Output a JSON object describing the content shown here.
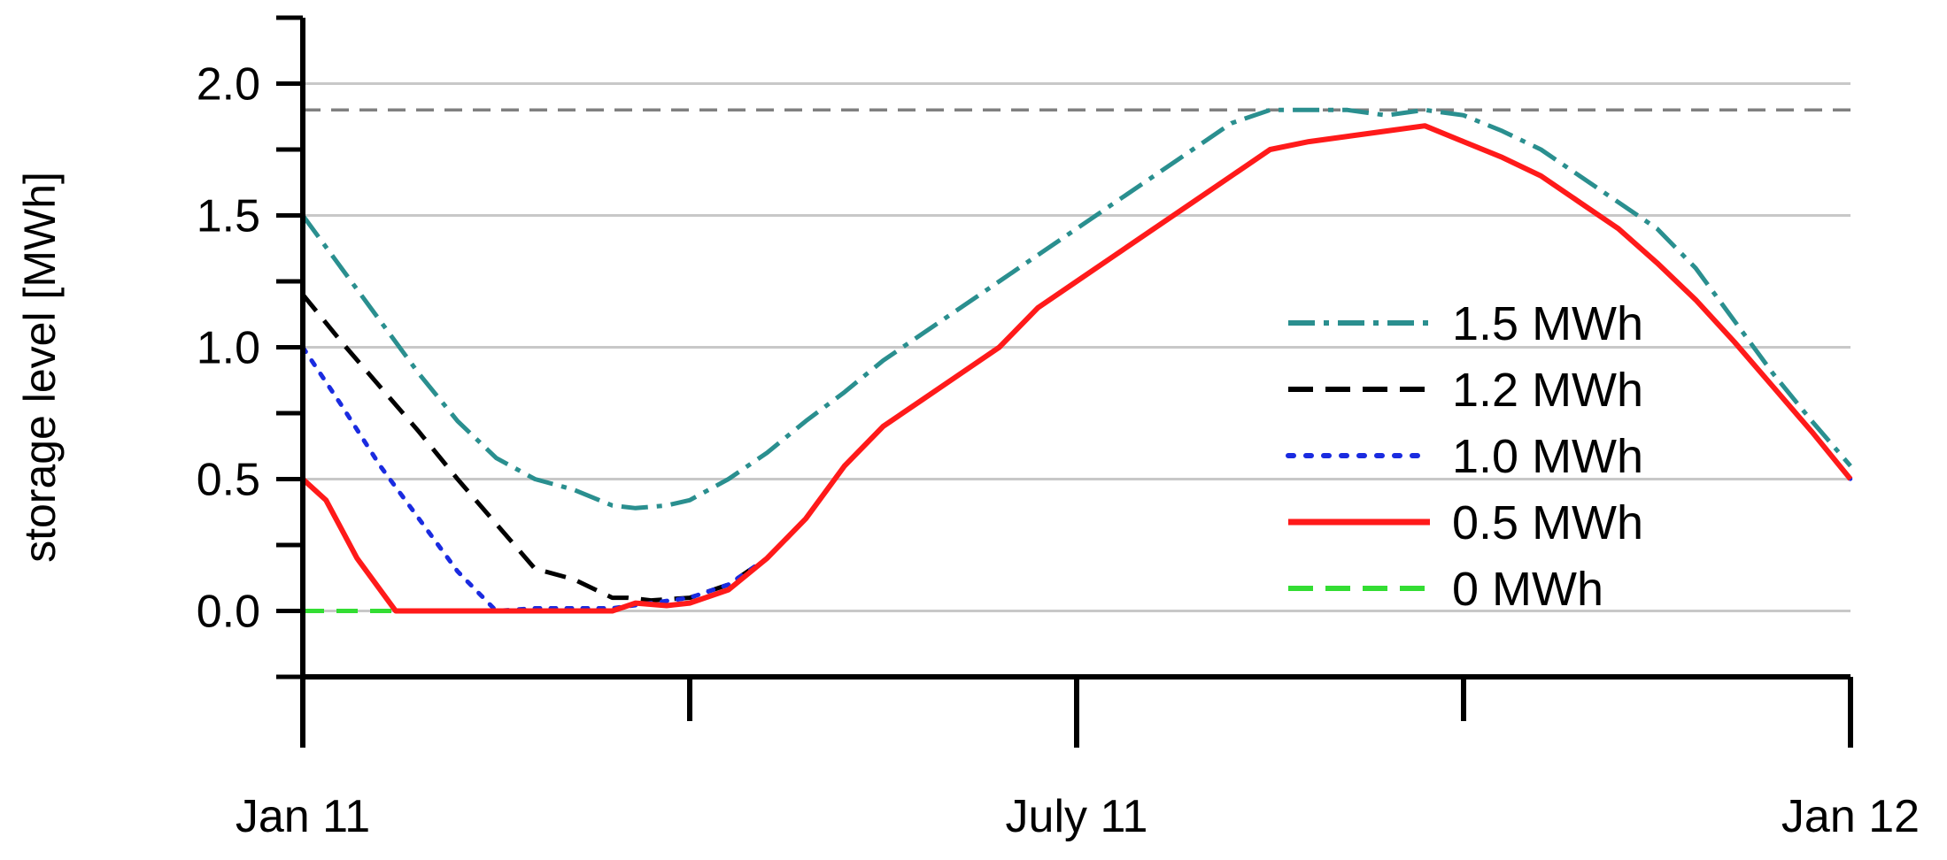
{
  "chart_data": {
    "type": "line",
    "title": "",
    "xlabel": "",
    "ylabel": "storage level [MWh]",
    "xlim": [
      "Jan 11",
      "Jan 12"
    ],
    "ylim": [
      -0.25,
      2.25
    ],
    "x_ticks": [
      {
        "label": "Jan 11"
      },
      {
        "label": ""
      },
      {
        "label": "July 11"
      },
      {
        "label": ""
      },
      {
        "label": "Jan 12"
      }
    ],
    "y_ticks": [
      "0.0",
      "0.5",
      "1.0",
      "1.5",
      "2.0"
    ],
    "grid": "horizontal",
    "capacity_line": 1.9,
    "legend_position": "right",
    "x_unit": "month (Jan 11 - Jan 12)",
    "series": [
      {
        "name": "1.5 MWh",
        "color": "#2a8f8f",
        "style": "dash-dot",
        "points": [
          [
            0,
            1.5
          ],
          [
            0.5,
            1.3
          ],
          [
            1,
            1.1
          ],
          [
            1.5,
            0.9
          ],
          [
            2,
            0.72
          ],
          [
            2.5,
            0.58
          ],
          [
            3,
            0.5
          ],
          [
            3.5,
            0.46
          ],
          [
            4,
            0.4
          ],
          [
            4.3,
            0.39
          ],
          [
            4.7,
            0.4
          ],
          [
            5,
            0.42
          ],
          [
            5.5,
            0.5
          ],
          [
            6,
            0.6
          ],
          [
            6.5,
            0.72
          ],
          [
            7,
            0.83
          ],
          [
            7.5,
            0.95
          ],
          [
            8,
            1.05
          ],
          [
            8.5,
            1.15
          ],
          [
            9,
            1.25
          ],
          [
            9.5,
            1.35
          ],
          [
            10,
            1.45
          ],
          [
            10.5,
            1.55
          ],
          [
            11,
            1.65
          ],
          [
            11.5,
            1.75
          ],
          [
            12,
            1.85
          ],
          [
            12.5,
            1.9
          ],
          [
            13,
            1.9
          ],
          [
            13.5,
            1.9
          ],
          [
            14,
            1.88
          ],
          [
            14.5,
            1.9
          ],
          [
            15,
            1.88
          ],
          [
            15.5,
            1.82
          ],
          [
            16,
            1.75
          ],
          [
            16.5,
            1.65
          ],
          [
            17,
            1.55
          ],
          [
            17.5,
            1.45
          ],
          [
            18,
            1.3
          ],
          [
            18.5,
            1.1
          ],
          [
            19,
            0.9
          ],
          [
            19.5,
            0.72
          ],
          [
            20,
            0.55
          ]
        ]
      },
      {
        "name": "1.2 MWh",
        "color": "#000000",
        "style": "dashed",
        "points": [
          [
            0,
            1.2
          ],
          [
            0.5,
            1.02
          ],
          [
            1,
            0.85
          ],
          [
            1.5,
            0.68
          ],
          [
            2,
            0.5
          ],
          [
            2.5,
            0.33
          ],
          [
            3,
            0.16
          ],
          [
            3.5,
            0.12
          ],
          [
            4,
            0.05
          ],
          [
            4.2,
            0.05
          ],
          [
            4.5,
            0.04
          ],
          [
            5,
            0.05
          ],
          [
            5.5,
            0.1
          ],
          [
            6,
            0.2
          ],
          [
            6.5,
            0.35
          ],
          [
            7,
            0.55
          ],
          [
            7.5,
            0.7
          ],
          [
            8,
            0.8
          ],
          [
            8.5,
            0.9
          ],
          [
            9,
            1.0
          ],
          [
            9.5,
            1.15
          ],
          [
            10,
            1.25
          ],
          [
            10.5,
            1.35
          ],
          [
            11,
            1.45
          ],
          [
            11.5,
            1.55
          ],
          [
            12,
            1.65
          ],
          [
            12.5,
            1.75
          ],
          [
            13,
            1.78
          ],
          [
            13.5,
            1.8
          ],
          [
            14,
            1.82
          ],
          [
            14.5,
            1.84
          ],
          [
            15,
            1.78
          ],
          [
            15.5,
            1.72
          ],
          [
            16,
            1.65
          ],
          [
            16.5,
            1.55
          ],
          [
            17,
            1.45
          ],
          [
            17.5,
            1.32
          ],
          [
            18,
            1.18
          ],
          [
            18.5,
            1.02
          ],
          [
            19,
            0.85
          ],
          [
            19.5,
            0.68
          ],
          [
            20,
            0.5
          ]
        ]
      },
      {
        "name": "1.0 MWh",
        "color": "#1a2be0",
        "style": "dotted",
        "points": [
          [
            0,
            1.0
          ],
          [
            0.5,
            0.78
          ],
          [
            1,
            0.55
          ],
          [
            1.5,
            0.35
          ],
          [
            2,
            0.15
          ],
          [
            2.5,
            0.0
          ],
          [
            3,
            0.01
          ],
          [
            3.5,
            0.01
          ],
          [
            4,
            0.01
          ],
          [
            4.5,
            0.03
          ],
          [
            5,
            0.05
          ],
          [
            5.5,
            0.1
          ],
          [
            6,
            0.2
          ],
          [
            6.5,
            0.35
          ],
          [
            7,
            0.55
          ],
          [
            7.5,
            0.7
          ],
          [
            8,
            0.8
          ],
          [
            8.5,
            0.9
          ],
          [
            9,
            1.0
          ],
          [
            9.5,
            1.15
          ],
          [
            10,
            1.25
          ],
          [
            10.5,
            1.35
          ],
          [
            11,
            1.45
          ],
          [
            11.5,
            1.55
          ],
          [
            12,
            1.65
          ],
          [
            12.5,
            1.75
          ],
          [
            13,
            1.78
          ],
          [
            13.5,
            1.8
          ],
          [
            14,
            1.82
          ],
          [
            14.5,
            1.84
          ],
          [
            15,
            1.78
          ],
          [
            15.5,
            1.72
          ],
          [
            16,
            1.65
          ],
          [
            16.5,
            1.55
          ],
          [
            17,
            1.45
          ],
          [
            17.5,
            1.32
          ],
          [
            18,
            1.18
          ],
          [
            18.5,
            1.02
          ],
          [
            19,
            0.85
          ],
          [
            19.5,
            0.68
          ],
          [
            20,
            0.5
          ]
        ]
      },
      {
        "name": "0.5 MWh",
        "color": "#ff1a1a",
        "style": "solid",
        "points": [
          [
            0,
            0.5
          ],
          [
            0.3,
            0.42
          ],
          [
            0.7,
            0.2
          ],
          [
            1.2,
            0.0
          ],
          [
            2,
            0.0
          ],
          [
            3,
            0.0
          ],
          [
            4,
            0.0
          ],
          [
            4.3,
            0.03
          ],
          [
            4.7,
            0.02
          ],
          [
            5,
            0.03
          ],
          [
            5.5,
            0.08
          ],
          [
            6,
            0.2
          ],
          [
            6.5,
            0.35
          ],
          [
            7,
            0.55
          ],
          [
            7.5,
            0.7
          ],
          [
            8,
            0.8
          ],
          [
            8.5,
            0.9
          ],
          [
            9,
            1.0
          ],
          [
            9.5,
            1.15
          ],
          [
            10,
            1.25
          ],
          [
            10.5,
            1.35
          ],
          [
            11,
            1.45
          ],
          [
            11.5,
            1.55
          ],
          [
            12,
            1.65
          ],
          [
            12.5,
            1.75
          ],
          [
            13,
            1.78
          ],
          [
            13.5,
            1.8
          ],
          [
            14,
            1.82
          ],
          [
            14.5,
            1.84
          ],
          [
            15,
            1.78
          ],
          [
            15.5,
            1.72
          ],
          [
            16,
            1.65
          ],
          [
            16.5,
            1.55
          ],
          [
            17,
            1.45
          ],
          [
            17.5,
            1.32
          ],
          [
            18,
            1.18
          ],
          [
            18.5,
            1.02
          ],
          [
            19,
            0.85
          ],
          [
            19.5,
            0.68
          ],
          [
            20,
            0.5
          ]
        ]
      },
      {
        "name": "0 MWh",
        "color": "#33dd33",
        "style": "dashed",
        "points": [
          [
            0,
            0.0
          ],
          [
            1.2,
            0.0
          ]
        ]
      }
    ]
  }
}
